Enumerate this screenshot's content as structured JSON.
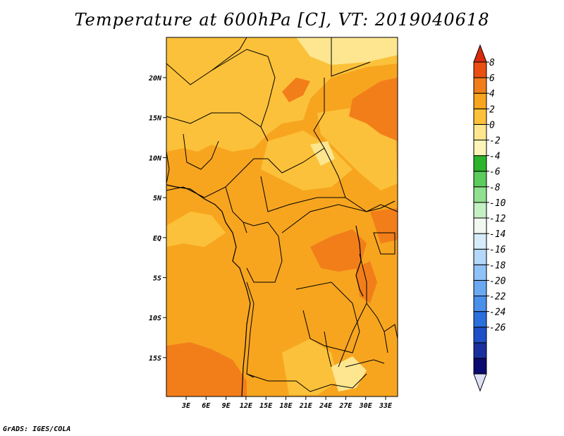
{
  "title": "Temperature at 600hPa [C], VT: 2019040618",
  "credit": "GrADS: IGES/COLA",
  "colors": {
    "base": "#f7a51f",
    "warm_patch": "#f27e1a",
    "cool_patch": "#fcc13a",
    "pale_patch": "#fde68f",
    "border": "#000000"
  },
  "map": {
    "lat_labels": [
      "20N",
      "15N",
      "10N",
      "5N",
      "EQ",
      "5S",
      "10S",
      "15S"
    ],
    "lon_labels": [
      "3E",
      "6E",
      "9E",
      "12E",
      "15E",
      "18E",
      "21E",
      "24E",
      "27E",
      "30E",
      "33E"
    ]
  },
  "colorbar": {
    "colors": [
      "#e0e0f7",
      "#0a0a70",
      "#1a2f9e",
      "#1e4fc8",
      "#2a6fde",
      "#4a8fea",
      "#6aa9f2",
      "#8fc2f7",
      "#b4d8fa",
      "#d6ecfb",
      "#f0f8f0",
      "#c5f0c5",
      "#8fe08f",
      "#5ccc5c",
      "#2cb52c",
      "#fdf5b8",
      "#fde68f",
      "#fcc13a",
      "#f7a51f",
      "#f27e1a",
      "#ea4f12",
      "#d92a0d"
    ],
    "labels": [
      "8",
      "6",
      "4",
      "2",
      "0",
      "-2",
      "-4",
      "-6",
      "-8",
      "-10",
      "-12",
      "-14",
      "-16",
      "-18",
      "-20",
      "-22",
      "-24",
      "-26"
    ]
  }
}
